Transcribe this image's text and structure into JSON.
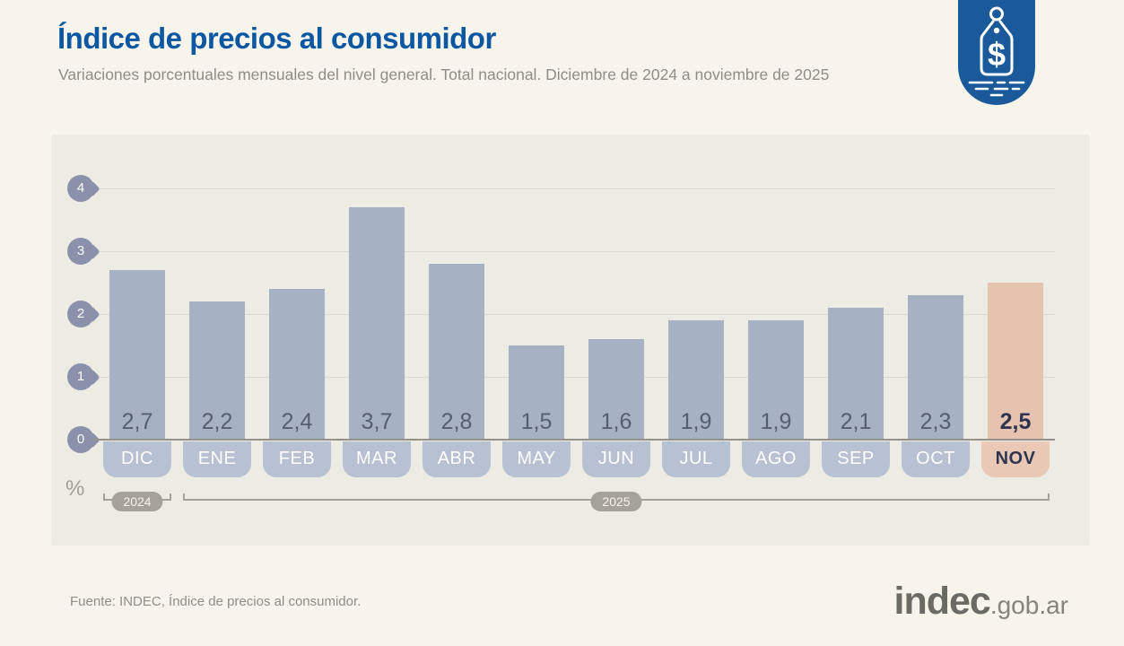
{
  "header": {
    "title": "Índice de precios al consumidor",
    "subtitle": "Variaciones porcentuales mensuales del nivel general. Total nacional. Diciembre de 2024 a noviembre de 2025"
  },
  "badge": {
    "icon": "price-tag-dollar-icon"
  },
  "chart_data": {
    "type": "bar",
    "title": "Índice de precios al consumidor",
    "subtitle": "Variaciones porcentuales mensuales del nivel general. Total nacional. Diciembre de 2024 a noviembre de 2025",
    "unit_label": "%",
    "categories": [
      "DIC",
      "ENE",
      "FEB",
      "MAR",
      "ABR",
      "MAY",
      "JUN",
      "JUL",
      "AGO",
      "SEP",
      "OCT",
      "NOV"
    ],
    "values": [
      2.7,
      2.2,
      2.4,
      3.7,
      2.8,
      1.5,
      1.6,
      1.9,
      1.9,
      2.1,
      2.3,
      2.5
    ],
    "value_labels": [
      "2,7",
      "2,2",
      "2,4",
      "3,7",
      "2,8",
      "1,5",
      "1,6",
      "1,9",
      "1,9",
      "2,1",
      "2,3",
      "2,5"
    ],
    "y_ticks": [
      0,
      1,
      2,
      3,
      4
    ],
    "ylim": [
      0,
      4
    ],
    "grid": true,
    "legend": "none",
    "highlight_index": 11,
    "highlight_category": "NOV",
    "year_groups": [
      {
        "label": "2024",
        "from": 0,
        "to": 0
      },
      {
        "label": "2025",
        "from": 1,
        "to": 11
      }
    ]
  },
  "footer": {
    "source": "Fuente: INDEC, Índice de precios al consumidor.",
    "logo_main": "indec",
    "logo_suffix": ".gob.ar"
  },
  "colors": {
    "page_bg": "#f7f4ec",
    "panel_bg": "#edece4",
    "title": "#0c57a2",
    "muted": "#8e8d86",
    "bar": "#a6b1c3",
    "bar_highlight": "#e6c3af",
    "month_tab": "#b7c1d2",
    "month_tab_highlight": "#e9c9b5",
    "value_text": "#565e6d",
    "value_text_highlight": "#2e3550",
    "axis_pin": "#8b90ab",
    "gridline": "#dbd8cf",
    "zero_line": "#94918a",
    "year_pill": "#a5a29a",
    "badge": "#1a5a9b"
  }
}
